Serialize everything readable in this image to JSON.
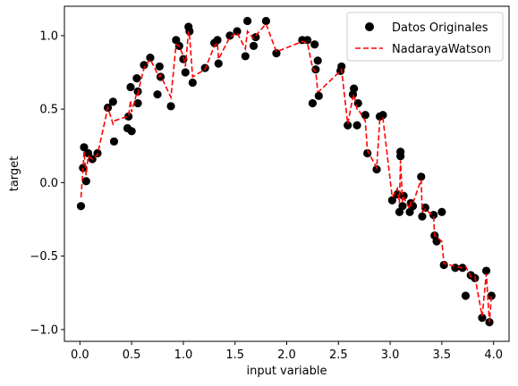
{
  "chart_data": {
    "type": "scatter",
    "xlabel": "input variable",
    "ylabel": "target",
    "xlim": [
      -0.15,
      4.15
    ],
    "ylim": [
      -1.08,
      1.2
    ],
    "xticks": [
      0.0,
      0.5,
      1.0,
      1.5,
      2.0,
      2.5,
      3.0,
      3.5,
      4.0
    ],
    "xtick_labels": [
      "0.0",
      "0.5",
      "1.0",
      "1.5",
      "2.0",
      "2.5",
      "3.0",
      "3.5",
      "4.0"
    ],
    "yticks": [
      -1.0,
      -0.5,
      0.0,
      0.5,
      1.0
    ],
    "ytick_labels": [
      "−1.0",
      "−0.5",
      "0.0",
      "0.5",
      "1.0"
    ],
    "grid": false,
    "legend_position": "top-right",
    "series": [
      {
        "name": "Datos Originales",
        "kind": "scatter",
        "color": "#000000",
        "x": [
          0.01,
          0.03,
          0.04,
          0.06,
          0.08,
          0.12,
          0.17,
          0.27,
          0.32,
          0.33,
          0.46,
          0.47,
          0.49,
          0.5,
          0.55,
          0.56,
          0.56,
          0.62,
          0.68,
          0.75,
          0.77,
          0.78,
          0.88,
          0.93,
          0.96,
          1.0,
          1.02,
          1.05,
          1.06,
          1.09,
          1.21,
          1.3,
          1.33,
          1.34,
          1.45,
          1.52,
          1.6,
          1.62,
          1.68,
          1.7,
          1.8,
          1.9,
          2.15,
          2.2,
          2.25,
          2.27,
          2.28,
          2.3,
          2.31,
          2.52,
          2.53,
          2.59,
          2.64,
          2.65,
          2.68,
          2.69,
          2.76,
          2.78,
          2.87,
          2.9,
          2.93,
          3.02,
          3.07,
          3.09,
          3.1,
          3.1,
          3.12,
          3.13,
          3.19,
          3.2,
          3.22,
          3.3,
          3.31,
          3.34,
          3.42,
          3.43,
          3.45,
          3.5,
          3.52,
          3.63,
          3.7,
          3.73,
          3.78,
          3.82,
          3.89,
          3.93,
          3.96,
          3.98
        ],
        "y": [
          -0.16,
          0.1,
          0.24,
          0.01,
          0.2,
          0.16,
          0.2,
          0.51,
          0.55,
          0.28,
          0.37,
          0.45,
          0.65,
          0.35,
          0.71,
          0.54,
          0.62,
          0.8,
          0.85,
          0.6,
          0.79,
          0.72,
          0.52,
          0.97,
          0.93,
          0.84,
          0.75,
          1.06,
          1.03,
          0.68,
          0.78,
          0.95,
          0.97,
          0.81,
          1.0,
          1.03,
          0.86,
          1.1,
          0.93,
          0.99,
          1.1,
          0.88,
          0.97,
          0.97,
          0.54,
          0.94,
          0.77,
          0.83,
          0.59,
          0.76,
          0.79,
          0.39,
          0.6,
          0.64,
          0.39,
          0.54,
          0.46,
          0.2,
          0.09,
          0.45,
          0.46,
          -0.12,
          -0.08,
          -0.2,
          0.21,
          0.18,
          -0.16,
          -0.09,
          -0.2,
          -0.14,
          -0.16,
          0.04,
          -0.23,
          -0.17,
          -0.22,
          -0.36,
          -0.4,
          -0.2,
          -0.56,
          -0.58,
          -0.58,
          -0.77,
          -0.63,
          -0.65,
          -0.92,
          -0.6,
          -0.95,
          -0.77
        ]
      },
      {
        "name": "NadarayaWatson",
        "kind": "line",
        "color": "#ff0000",
        "dash": "dashed",
        "x": [
          0.01,
          0.03,
          0.04,
          0.06,
          0.08,
          0.12,
          0.17,
          0.27,
          0.32,
          0.33,
          0.46,
          0.47,
          0.49,
          0.5,
          0.55,
          0.56,
          0.56,
          0.62,
          0.68,
          0.75,
          0.77,
          0.78,
          0.88,
          0.93,
          0.96,
          1.0,
          1.02,
          1.05,
          1.06,
          1.09,
          1.21,
          1.3,
          1.33,
          1.34,
          1.45,
          1.52,
          1.6,
          1.62,
          1.68,
          1.7,
          1.8,
          1.9,
          2.15,
          2.2,
          2.25,
          2.27,
          2.28,
          2.3,
          2.31,
          2.52,
          2.53,
          2.59,
          2.64,
          2.65,
          2.68,
          2.69,
          2.76,
          2.78,
          2.87,
          2.9,
          2.93,
          3.02,
          3.07,
          3.09,
          3.1,
          3.1,
          3.12,
          3.13,
          3.19,
          3.2,
          3.22,
          3.3,
          3.31,
          3.34,
          3.42,
          3.43,
          3.45,
          3.5,
          3.52,
          3.63,
          3.7,
          3.73,
          3.78,
          3.82,
          3.89,
          3.93,
          3.96,
          3.98
        ],
        "y": [
          -0.1,
          0.09,
          0.21,
          0.05,
          0.18,
          0.16,
          0.19,
          0.51,
          0.4,
          0.42,
          0.45,
          0.45,
          0.56,
          0.48,
          0.61,
          0.6,
          0.61,
          0.78,
          0.84,
          0.74,
          0.72,
          0.73,
          0.58,
          0.94,
          0.93,
          0.86,
          0.79,
          1.03,
          1.0,
          0.72,
          0.77,
          0.93,
          0.95,
          0.84,
          0.99,
          1.02,
          0.91,
          1.03,
          0.98,
          1.0,
          1.08,
          0.89,
          0.96,
          0.95,
          0.78,
          0.76,
          0.76,
          0.62,
          0.62,
          0.76,
          0.77,
          0.4,
          0.58,
          0.6,
          0.5,
          0.5,
          0.42,
          0.22,
          0.1,
          0.43,
          0.44,
          -0.1,
          -0.04,
          -0.14,
          0.15,
          0.15,
          -0.13,
          -0.1,
          -0.18,
          -0.13,
          -0.14,
          0.02,
          -0.2,
          -0.18,
          -0.23,
          -0.36,
          -0.37,
          -0.4,
          -0.55,
          -0.57,
          -0.58,
          -0.57,
          -0.64,
          -0.64,
          -0.91,
          -0.62,
          -0.95,
          -0.77
        ]
      }
    ]
  }
}
